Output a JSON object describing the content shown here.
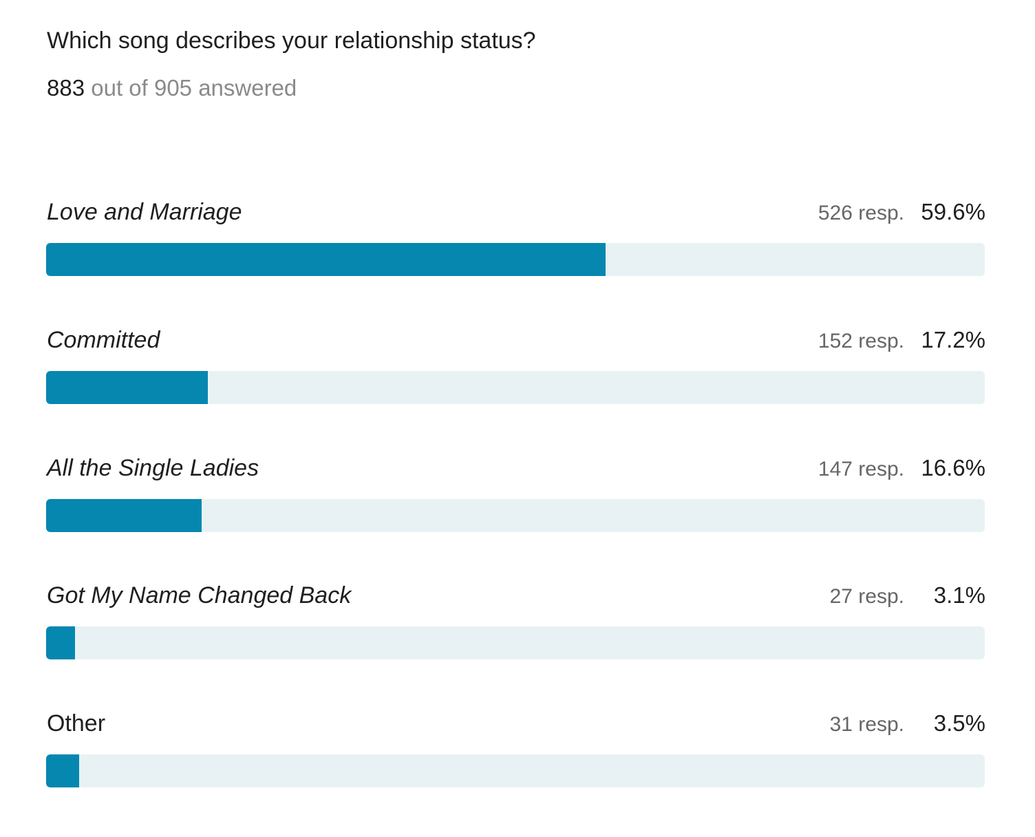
{
  "question": "Which song describes your relationship status?",
  "answered": {
    "count": "883",
    "rest": "out of 905 answered"
  },
  "colors": {
    "bar_fill": "#0587b0",
    "bar_track": "#e8f2f4"
  },
  "chart_data": {
    "type": "bar",
    "orientation": "horizontal",
    "title": "Which song describes your relationship status?",
    "categories": [
      "Love and Marriage",
      "Committed",
      "All the Single Ladies",
      "Got My Name Changed Back",
      "Other"
    ],
    "series": [
      {
        "values": [
          59.6,
          17.2,
          16.6,
          3.1,
          3.5
        ],
        "responses": [
          526,
          152,
          147,
          27,
          31
        ]
      }
    ],
    "xlim": [
      0,
      100
    ],
    "grid": false
  },
  "options": [
    {
      "label": "Love and Marriage",
      "italic": true,
      "responses": "526 resp.",
      "percent": "59.6%",
      "value": 59.6
    },
    {
      "label": "Committed",
      "italic": true,
      "responses": "152 resp.",
      "percent": "17.2%",
      "value": 17.2
    },
    {
      "label": "All the Single Ladies",
      "italic": true,
      "responses": "147 resp.",
      "percent": "16.6%",
      "value": 16.6
    },
    {
      "label": "Got My Name Changed Back",
      "italic": true,
      "responses": "27 resp.",
      "percent": "3.1%",
      "value": 3.1
    },
    {
      "label": "Other",
      "italic": false,
      "responses": "31 resp.",
      "percent": "3.5%",
      "value": 3.5
    }
  ]
}
